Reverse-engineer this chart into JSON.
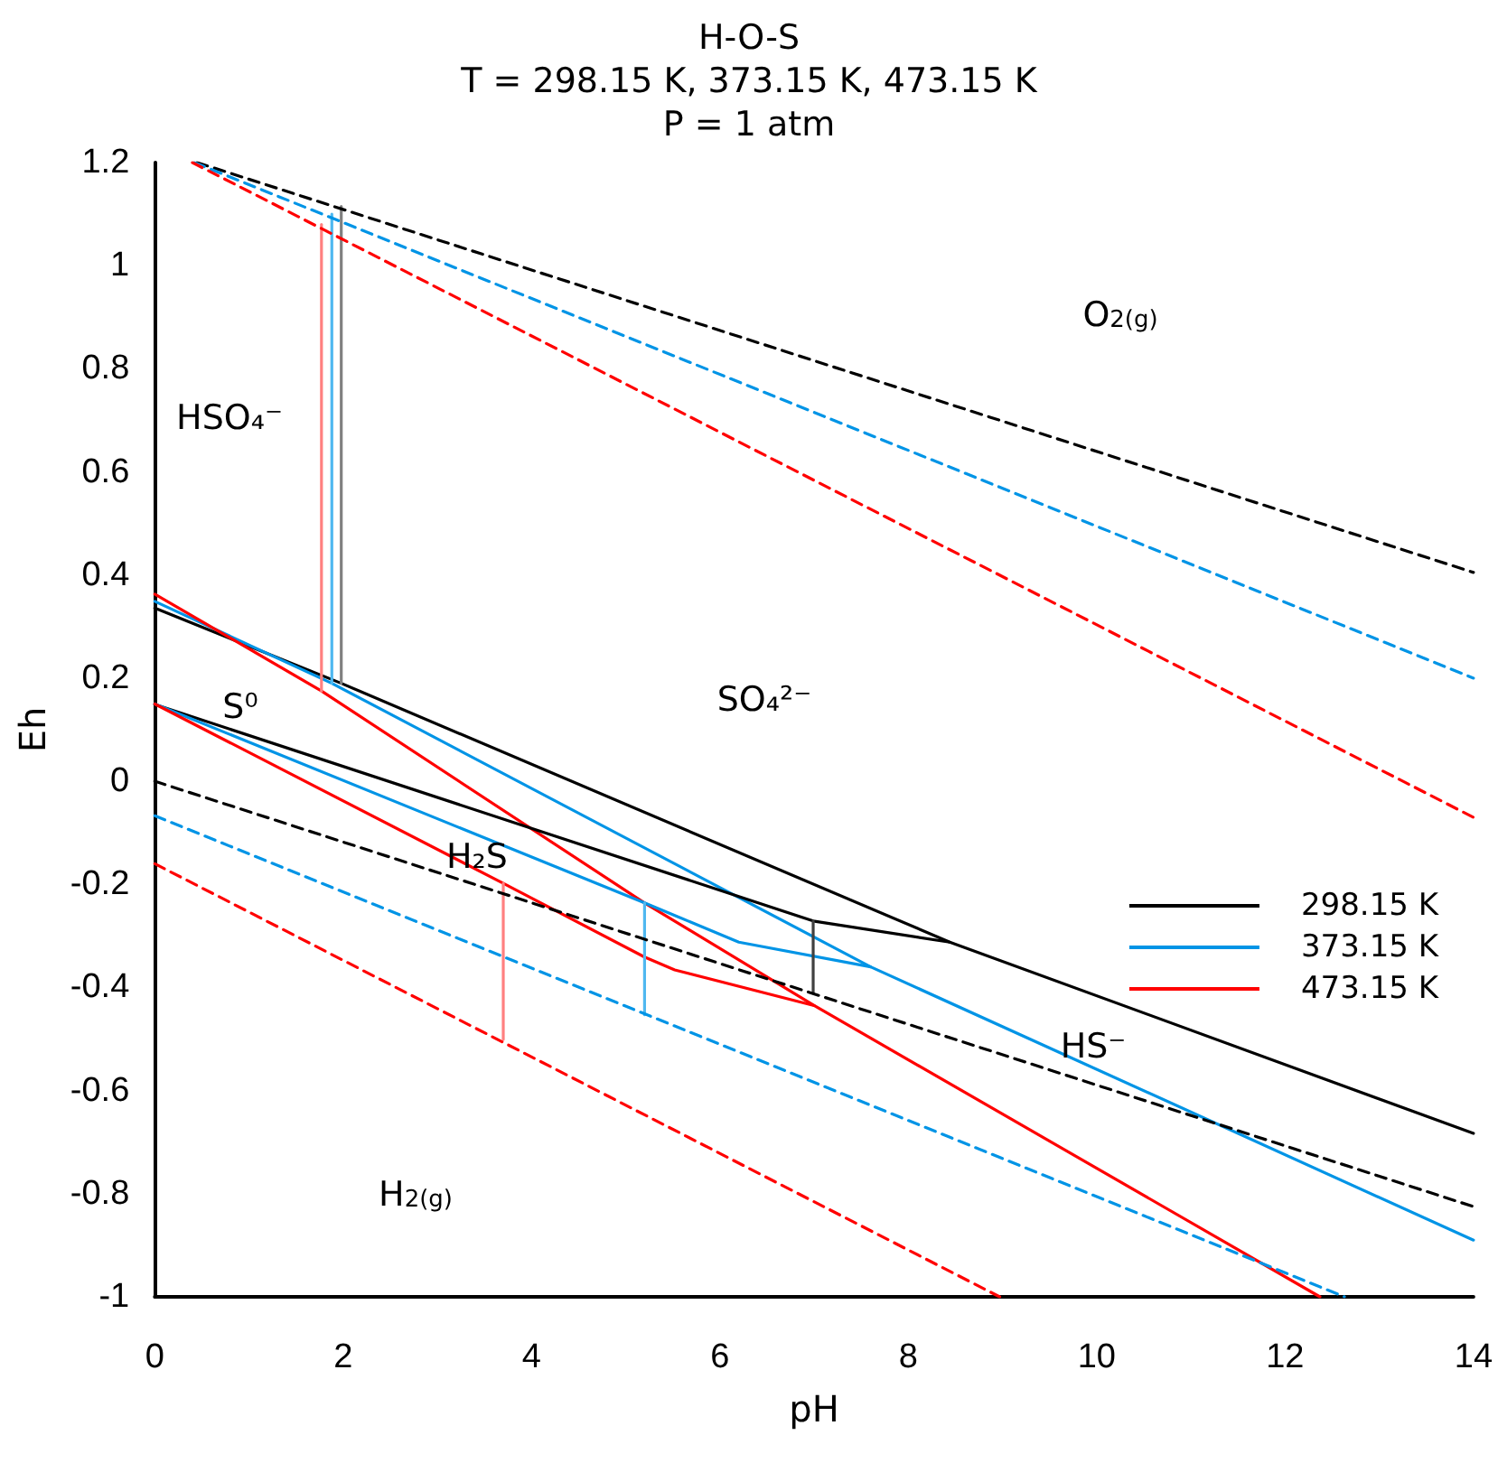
{
  "chart_data": {
    "type": "line",
    "title": "H-O-S",
    "subtitle": "T = 298.15 K, 373.15 K, 473.15 K\nP = 1 atm",
    "xlabel": "pH",
    "ylabel": "Eh",
    "xlim": [
      0,
      14
    ],
    "xticks": [
      0,
      2,
      4,
      6,
      8,
      10,
      12,
      14
    ],
    "ylim": [
      -1,
      1.2
    ],
    "yticks": [
      -1,
      -0.8,
      -0.6,
      -0.4,
      -0.2,
      0,
      0.2,
      0.4,
      0.6,
      0.8,
      1,
      1.2
    ],
    "grid": false,
    "legend": "right",
    "marker": "none",
    "series": [
      {
        "name": "298.15 K",
        "color": "#000000",
        "line_style": "solid",
        "x": [
          0,
          1.98,
          8.44,
          14
        ],
        "values": [
          0.336,
          0.19,
          -0.312,
          -0.683
        ]
      },
      {
        "name": "373.15 K",
        "color": "#0094e6",
        "line_style": "solid",
        "x": [
          0,
          1.88,
          7.6,
          14
        ],
        "values": [
          0.349,
          0.19,
          -0.36,
          -0.89
        ]
      },
      {
        "name": "473.15 K",
        "color": "#ff0000",
        "line_style": "solid",
        "x": [
          0,
          1.77,
          5.2,
          7,
          12.37
        ],
        "values": [
          0.363,
          0.175,
          -0.236,
          -0.435,
          -1
        ]
      },
      {
        "color": "#000000",
        "line_style": "solid",
        "x": [
          0,
          6.99,
          8.44
        ],
        "values": [
          0.149,
          -0.271,
          -0.312
        ]
      },
      {
        "color": "#0094e6",
        "line_style": "solid",
        "x": [
          0,
          5.2,
          6.2,
          7.6
        ],
        "values": [
          0.15,
          -0.236,
          -0.312,
          -0.36
        ]
      },
      {
        "color": "#ff0000",
        "line_style": "solid",
        "x": [
          0,
          3.7,
          5.2,
          5.52,
          7
        ],
        "values": [
          0.15,
          -0.198,
          -0.341,
          -0.366,
          -0.435
        ]
      },
      {
        "color": "#808080",
        "line_style": "solid",
        "x": [
          1.98,
          1.98
        ],
        "values": [
          0.19,
          1.115
        ]
      },
      {
        "color": "#4fb8f0",
        "line_style": "solid",
        "x": [
          1.88,
          1.88
        ],
        "values": [
          0.19,
          1.1
        ]
      },
      {
        "color": "#ff8080",
        "line_style": "solid",
        "x": [
          1.77,
          1.77
        ],
        "values": [
          0.175,
          1.08
        ]
      },
      {
        "color": "#404040",
        "line_style": "solid",
        "x": [
          6.99,
          6.99
        ],
        "values": [
          -0.271,
          -0.411
        ]
      },
      {
        "color": "#4fb8f0",
        "line_style": "solid",
        "x": [
          5.2,
          5.2
        ],
        "values": [
          -0.236,
          -0.453
        ]
      },
      {
        "color": "#ff8080",
        "line_style": "solid",
        "x": [
          3.7,
          3.7
        ],
        "values": [
          -0.198,
          -0.501
        ]
      },
      {
        "color": "#000000",
        "line_style": "dashed",
        "x": [
          0.45,
          14
        ],
        "values": [
          1.2,
          0.405
        ]
      },
      {
        "color": "#0094e6",
        "line_style": "dashed",
        "x": [
          0.42,
          14
        ],
        "values": [
          1.2,
          0.2
        ]
      },
      {
        "color": "#ff0000",
        "line_style": "dashed",
        "x": [
          0.4,
          14
        ],
        "values": [
          1.2,
          -0.07
        ]
      },
      {
        "color": "#000000",
        "line_style": "dashed",
        "x": [
          0,
          14
        ],
        "values": [
          0,
          -0.825
        ]
      },
      {
        "color": "#0094e6",
        "line_style": "dashed",
        "x": [
          0,
          12.63
        ],
        "values": [
          -0.067,
          -1
        ]
      },
      {
        "color": "#ff0000",
        "line_style": "dashed",
        "x": [
          0,
          8.97
        ],
        "values": [
          -0.16,
          -1
        ]
      }
    ],
    "annotations": [
      "HSO₄⁻",
      "O$_{2(g)}$",
      "SO₄²⁻",
      "S⁰",
      "H₂S",
      "HS⁻",
      "H$_{2(g)}$"
    ]
  }
}
